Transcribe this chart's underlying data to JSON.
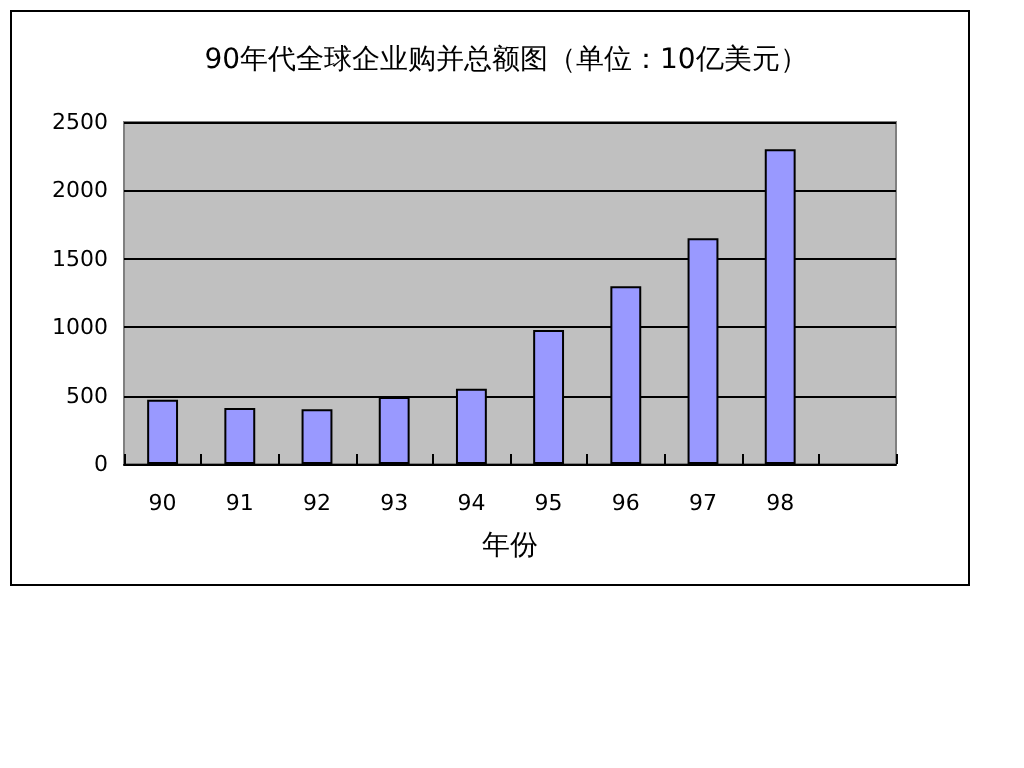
{
  "chart_data": {
    "type": "bar",
    "title": "90年代全球企业购并总额图（单位：10亿美元）",
    "xlabel": "年份",
    "categories": [
      "90",
      "91",
      "92",
      "93",
      "94",
      "95",
      "96",
      "97",
      "98",
      null
    ],
    "values": [
      470,
      410,
      400,
      490,
      550,
      980,
      1300,
      1650,
      2300,
      null
    ],
    "color": "#9999ff",
    "ylim": [
      0,
      2500
    ],
    "yticks": [
      0,
      500,
      1000,
      1500,
      2000,
      2500
    ],
    "grid": "y"
  }
}
